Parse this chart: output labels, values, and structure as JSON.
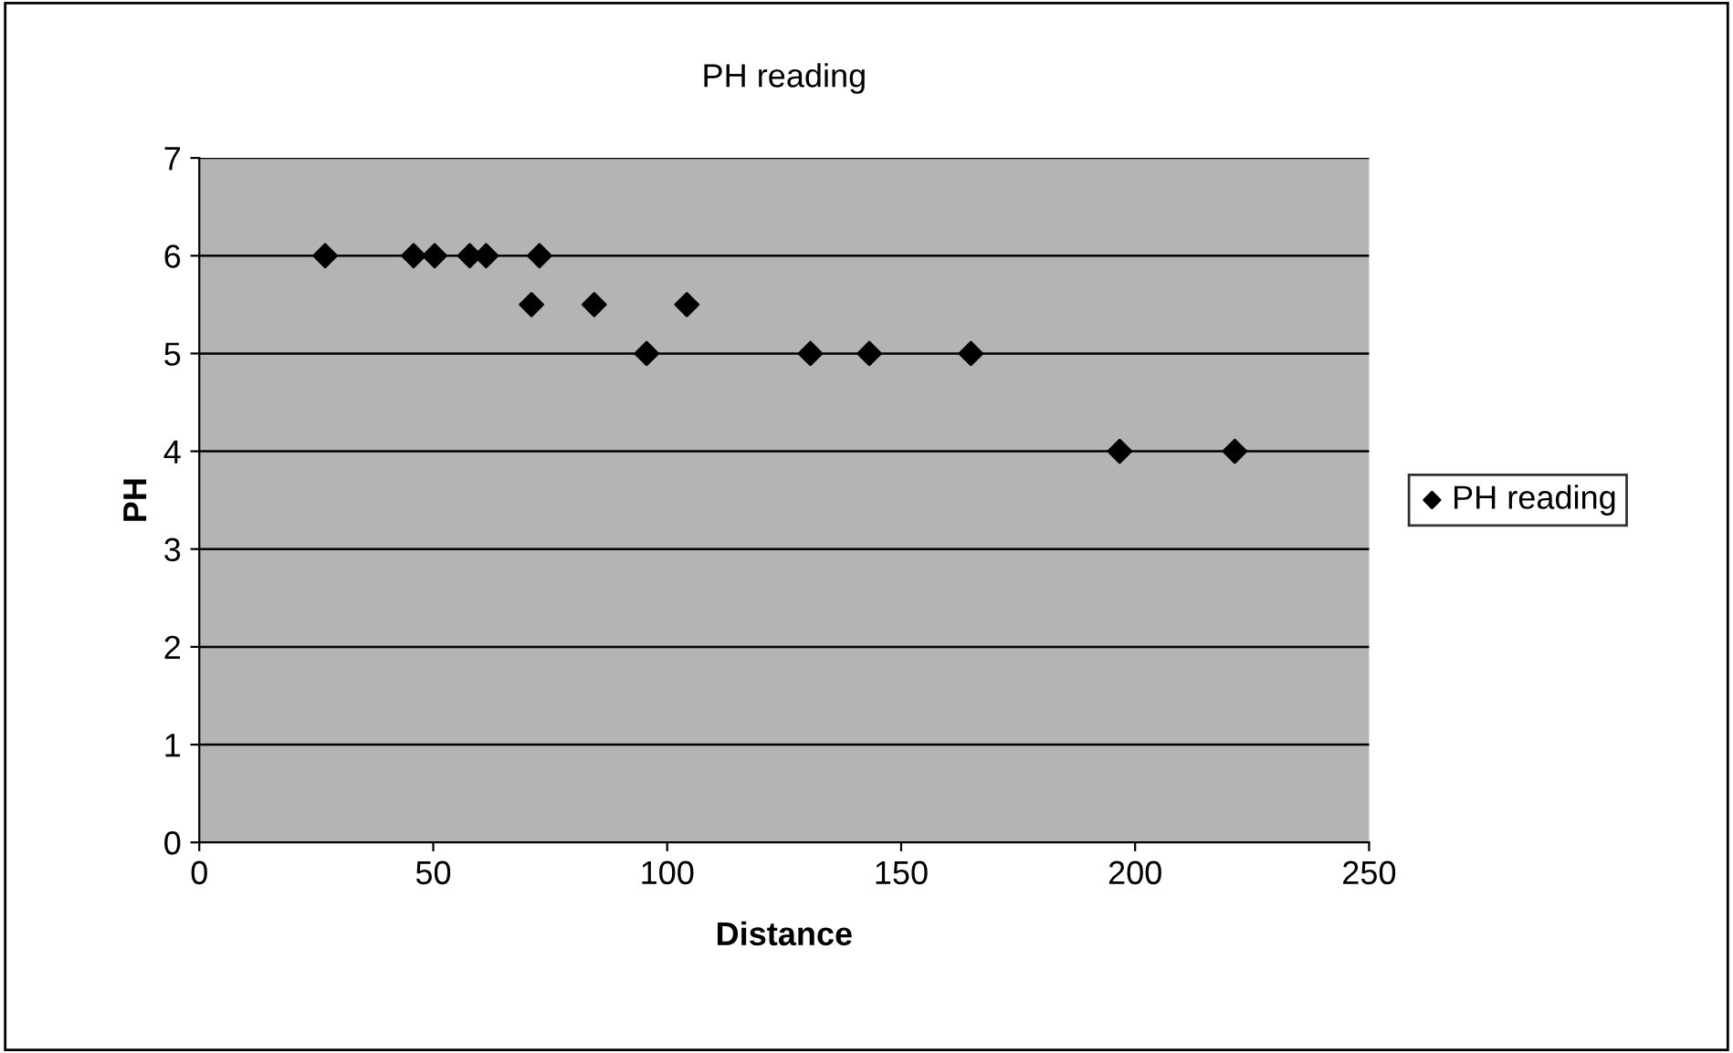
{
  "chart_data": {
    "type": "scatter",
    "title": "PH reading",
    "xlabel": "Distance",
    "ylabel": "PH",
    "series": [
      {
        "name": "PH reading",
        "color": "#000000",
        "x": [
          26.9,
          45.8,
          50.3,
          57.8,
          61.3,
          72.7,
          71.0,
          84.4,
          95.6,
          104.2,
          130.6,
          143.2,
          164.9,
          196.7,
          221.3
        ],
        "values": [
          6,
          6,
          6,
          6,
          6,
          6,
          5.5,
          5.5,
          5,
          5.5,
          5,
          5,
          5,
          4,
          4
        ]
      }
    ],
    "xlim": [
      0,
      250
    ],
    "xticks": [
      0,
      50,
      100,
      150,
      200,
      250
    ],
    "ylim": [
      0,
      7
    ],
    "yticks": [
      0,
      1,
      2,
      3,
      4,
      5,
      6,
      7
    ],
    "grid": "y",
    "legend": "right",
    "marker": "diamond"
  }
}
